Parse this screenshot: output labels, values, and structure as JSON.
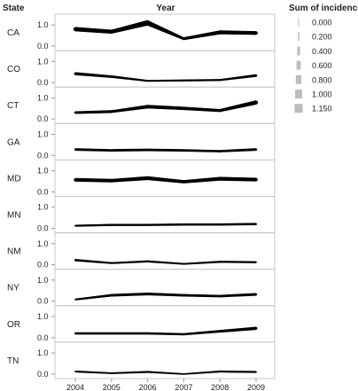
{
  "header": {
    "row_label": "State",
    "col_label": "Year",
    "legend_title": "Sum of incidence"
  },
  "chart_data": {
    "type": "line",
    "encoding": "line thickness = sum of incidence",
    "x": [
      "2004",
      "2005",
      "2006",
      "2007",
      "2008",
      "2009"
    ],
    "y_ticks": [
      "0.0",
      "1.0"
    ],
    "ylim": [
      0,
      1.3
    ],
    "legend": [
      {
        "label": "0.000",
        "value": 0.0
      },
      {
        "label": "0.200",
        "value": 0.2
      },
      {
        "label": "0.400",
        "value": 0.4
      },
      {
        "label": "0.600",
        "value": 0.6
      },
      {
        "label": "0.800",
        "value": 0.8
      },
      {
        "label": "1.000",
        "value": 1.0
      },
      {
        "label": "1.150",
        "value": 1.15
      }
    ],
    "series": [
      {
        "name": "CA",
        "values": [
          0.8,
          0.68,
          1.1,
          0.35,
          0.65,
          0.62
        ]
      },
      {
        "name": "CO",
        "values": [
          0.42,
          0.28,
          0.08,
          0.1,
          0.12,
          0.33
        ]
      },
      {
        "name": "CT",
        "values": [
          0.3,
          0.35,
          0.58,
          0.5,
          0.4,
          0.78
        ]
      },
      {
        "name": "GA",
        "values": [
          0.28,
          0.24,
          0.26,
          0.24,
          0.2,
          0.28
        ]
      },
      {
        "name": "MD",
        "values": [
          0.57,
          0.53,
          0.65,
          0.48,
          0.62,
          0.58
        ]
      },
      {
        "name": "MN",
        "values": [
          0.12,
          0.16,
          0.16,
          0.18,
          0.18,
          0.2
        ]
      },
      {
        "name": "NM",
        "values": [
          0.22,
          0.08,
          0.16,
          0.04,
          0.14,
          0.12
        ]
      },
      {
        "name": "NY",
        "values": [
          0.08,
          0.28,
          0.34,
          0.28,
          0.24,
          0.32
        ]
      },
      {
        "name": "OR",
        "values": [
          0.2,
          0.2,
          0.2,
          0.16,
          0.3,
          0.44
        ]
      },
      {
        "name": "TN",
        "values": [
          0.12,
          0.04,
          0.1,
          0.0,
          0.12,
          0.1
        ]
      }
    ]
  },
  "colors": {
    "line": "#000000",
    "legend_bar": "#bdbdbd",
    "border": "#c8c8c8",
    "text": "#222222"
  }
}
